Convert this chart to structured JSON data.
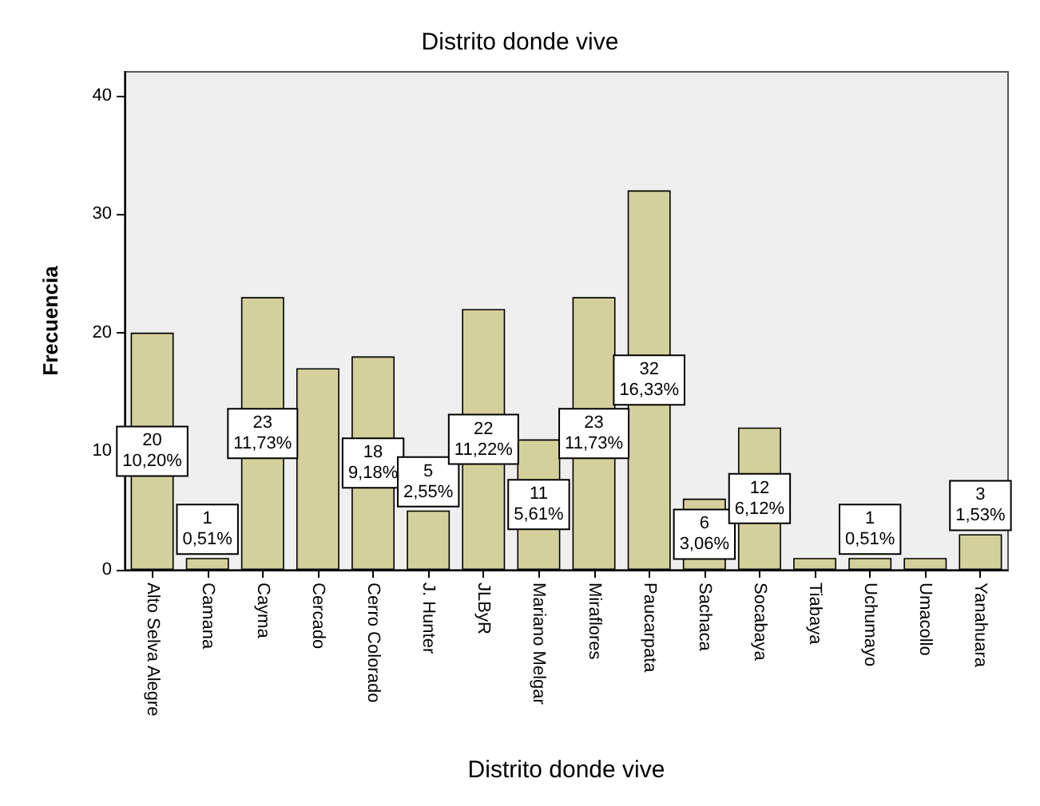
{
  "chart_data": {
    "type": "bar",
    "title": "Distrito donde vive",
    "xlabel": "Distrito donde vive",
    "ylabel": "Frecuencia",
    "categories": [
      "Alto Selva Alegre",
      "Camana",
      "Cayma",
      "Cercado",
      "Cerro Colorado",
      "J. Hunter",
      "JLByR",
      "Mariano Melgar",
      "Miraflores",
      "Paucarpata",
      "Sachaca",
      "Socabaya",
      "Tiabaya",
      "Uchumayo",
      "Umacollo",
      "Yanahuara"
    ],
    "values": [
      20,
      1,
      23,
      17,
      18,
      5,
      22,
      11,
      23,
      32,
      6,
      12,
      1,
      1,
      1,
      3
    ],
    "value_labels": [
      "20\n10,20%",
      "1\n0,51%",
      "23\n11,73%",
      null,
      "18\n9,18%",
      "5\n2,55%",
      "22\n11,22%",
      "11\n5,61%",
      "23\n11,73%",
      "32\n16,33%",
      "6\n3,06%",
      "12\n6,12%",
      null,
      "1\n0,51%",
      null,
      "3\n1,53%"
    ],
    "color": "#d4d09b",
    "ylim": [
      0,
      42
    ],
    "yticks": [
      0,
      10,
      20,
      30,
      40
    ],
    "grid": false
  }
}
